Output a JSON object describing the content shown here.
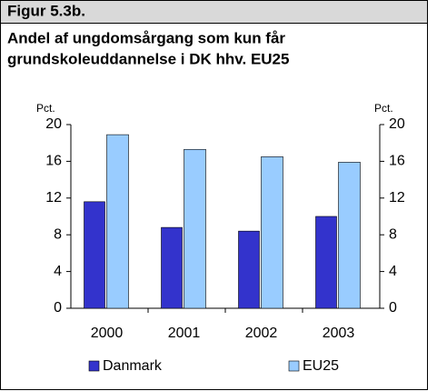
{
  "chart_data": {
    "type": "bar",
    "figure_label": "Figur 5.3b.",
    "title": [
      "Andel af ungdomsårgang som kun får",
      "grundskoleuddannelse i DK hhv. EU25"
    ],
    "ylabel": "Pct.",
    "y2label": "Pct.",
    "categories": [
      "2000",
      "2001",
      "2002",
      "2003"
    ],
    "series": [
      {
        "name": "Danmark",
        "color": "#3333cc",
        "values": [
          11.6,
          8.8,
          8.4,
          10.0
        ]
      },
      {
        "name": "EU25",
        "color": "#99ccff",
        "values": [
          18.9,
          17.3,
          16.5,
          15.9
        ]
      }
    ],
    "ylim": [
      0,
      20
    ],
    "yticks": [
      0,
      4,
      8,
      12,
      16,
      20
    ],
    "y2lim": [
      0,
      20
    ],
    "y2ticks": [
      0,
      4,
      8,
      12,
      16,
      20
    ],
    "grid": false,
    "legend": "bottom"
  }
}
